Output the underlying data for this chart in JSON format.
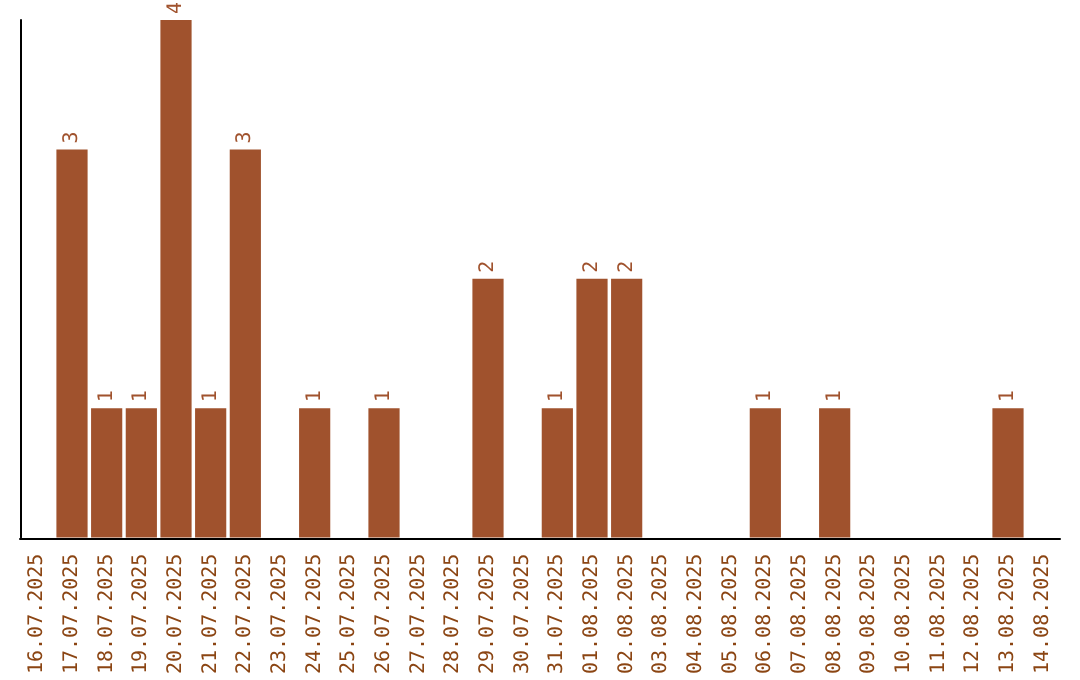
{
  "chart_data": {
    "type": "bar",
    "categories": [
      "16.07.2025",
      "17.07.2025",
      "18.07.2025",
      "19.07.2025",
      "20.07.2025",
      "21.07.2025",
      "22.07.2025",
      "23.07.2025",
      "24.07.2025",
      "25.07.2025",
      "26.07.2025",
      "27.07.2025",
      "28.07.2025",
      "29.07.2025",
      "30.07.2025",
      "31.07.2025",
      "01.08.2025",
      "02.08.2025",
      "03.08.2025",
      "04.08.2025",
      "05.08.2025",
      "06.08.2025",
      "07.08.2025",
      "08.08.2025",
      "09.08.2025",
      "10.08.2025",
      "11.08.2025",
      "12.08.2025",
      "13.08.2025",
      "14.08.2025"
    ],
    "values": [
      null,
      3,
      1,
      1,
      4,
      1,
      3,
      null,
      1,
      null,
      1,
      null,
      null,
      2,
      null,
      1,
      2,
      2,
      null,
      null,
      null,
      1,
      null,
      1,
      null,
      null,
      null,
      null,
      1,
      null
    ],
    "color": "#a0522d",
    "data_labels": true,
    "tick_labels": "x",
    "grid": false
  }
}
